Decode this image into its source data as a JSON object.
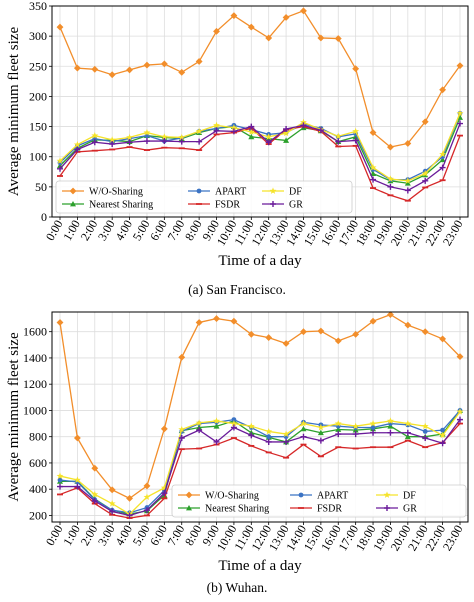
{
  "colors": {
    "W/O-Sharing": "#f28e2b",
    "Nearest Sharing": "#2ca02c",
    "APART": "#3b73c4",
    "FSDR": "#d62728",
    "DF": "#f5e32a",
    "GR": "#6a1b9a",
    "grid": "#dddddd"
  },
  "chart_data": [
    {
      "type": "line",
      "caption": "(a)  San Francisco.",
      "xlabel": "Time of a day",
      "ylabel": "Average minimum fleet size",
      "categories": [
        "0:00",
        "1:00",
        "2:00",
        "3:00",
        "4:00",
        "5:00",
        "6:00",
        "7:00",
        "8:00",
        "9:00",
        "10:00",
        "11:00",
        "12:00",
        "13:00",
        "14:00",
        "15:00",
        "16:00",
        "17:00",
        "18:00",
        "19:00",
        "20:00",
        "21:00",
        "22:00",
        "23:00"
      ],
      "ylim": [
        0,
        350
      ],
      "yticks": [
        0,
        50,
        100,
        150,
        200,
        250,
        300,
        350
      ],
      "grid": true,
      "legend": "lower-left",
      "series": [
        {
          "name": "W/O-Sharing",
          "marker": "diamond",
          "values": [
            315,
            247,
            245,
            236,
            244,
            252,
            254,
            240,
            258,
            308,
            334,
            315,
            297,
            331,
            342,
            297,
            296,
            246,
            140,
            116,
            122,
            158,
            211,
            251
          ]
        },
        {
          "name": "Nearest Sharing",
          "marker": "triangle",
          "values": [
            85,
            114,
            128,
            127,
            125,
            135,
            132,
            130,
            140,
            147,
            150,
            133,
            130,
            127,
            148,
            143,
            125,
            133,
            72,
            60,
            56,
            70,
            95,
            165
          ]
        },
        {
          "name": "APART",
          "marker": "circle",
          "values": [
            90,
            118,
            130,
            125,
            130,
            135,
            126,
            131,
            142,
            147,
            152,
            145,
            137,
            140,
            154,
            147,
            133,
            138,
            79,
            62,
            62,
            76,
            100,
            172
          ]
        },
        {
          "name": "FSDR",
          "marker": "dash",
          "values": [
            68,
            108,
            110,
            112,
            116,
            111,
            115,
            114,
            111,
            137,
            140,
            147,
            121,
            145,
            150,
            142,
            117,
            118,
            48,
            36,
            27,
            49,
            61,
            135
          ]
        },
        {
          "name": "DF",
          "marker": "star",
          "values": [
            93,
            120,
            135,
            128,
            132,
            140,
            133,
            132,
            142,
            152,
            148,
            141,
            133,
            139,
            157,
            145,
            134,
            142,
            82,
            63,
            60,
            72,
            104,
            172
          ]
        },
        {
          "name": "GR",
          "marker": "plus",
          "values": [
            80,
            112,
            124,
            121,
            124,
            126,
            126,
            125,
            125,
            143,
            142,
            150,
            124,
            146,
            152,
            144,
            125,
            127,
            62,
            50,
            44,
            60,
            82,
            155
          ]
        }
      ]
    },
    {
      "type": "line",
      "caption": "(b)  Wuhan.",
      "xlabel": "Time of a day",
      "ylabel": "Average minimum fleet size",
      "categories": [
        "0:00",
        "1:00",
        "2:00",
        "3:00",
        "4:00",
        "5:00",
        "6:00",
        "7:00",
        "8:00",
        "9:00",
        "10:00",
        "11:00",
        "12:00",
        "13:00",
        "14:00",
        "15:00",
        "16:00",
        "17:00",
        "18:00",
        "19:00",
        "20:00",
        "21:00",
        "22:00",
        "23:00"
      ],
      "ylim": [
        150,
        1750
      ],
      "yticks": [
        200,
        400,
        600,
        800,
        1000,
        1200,
        1400,
        1600
      ],
      "grid": true,
      "legend": "lower-center",
      "series": [
        {
          "name": "W/O-Sharing",
          "marker": "diamond",
          "values": [
            1670,
            790,
            560,
            395,
            330,
            425,
            860,
            1405,
            1670,
            1700,
            1680,
            1580,
            1555,
            1510,
            1600,
            1605,
            1530,
            1580,
            1680,
            1730,
            1650,
            1600,
            1545,
            1410
          ]
        },
        {
          "name": "Nearest Sharing",
          "marker": "triangle",
          "values": [
            460,
            460,
            325,
            240,
            210,
            235,
            355,
            845,
            870,
            880,
            920,
            830,
            795,
            760,
            860,
            830,
            855,
            850,
            860,
            880,
            800,
            800,
            820,
            1000
          ]
        },
        {
          "name": "APART",
          "marker": "circle",
          "values": [
            470,
            455,
            320,
            240,
            220,
            260,
            390,
            840,
            900,
            910,
            930,
            870,
            800,
            800,
            910,
            890,
            880,
            870,
            870,
            900,
            890,
            840,
            850,
            1000
          ]
        },
        {
          "name": "FSDR",
          "marker": "dash",
          "values": [
            360,
            410,
            290,
            205,
            180,
            200,
            330,
            705,
            710,
            740,
            790,
            730,
            680,
            640,
            740,
            650,
            720,
            710,
            720,
            720,
            770,
            720,
            755,
            900
          ]
        },
        {
          "name": "DF",
          "marker": "star",
          "values": [
            500,
            470,
            360,
            290,
            210,
            340,
            410,
            855,
            905,
            920,
            900,
            880,
            840,
            820,
            900,
            870,
            900,
            880,
            900,
            920,
            900,
            880,
            810,
            990
          ]
        },
        {
          "name": "GR",
          "marker": "plus",
          "values": [
            420,
            420,
            310,
            230,
            200,
            240,
            370,
            790,
            850,
            760,
            870,
            810,
            760,
            760,
            800,
            770,
            820,
            820,
            830,
            830,
            830,
            790,
            750,
            930
          ]
        }
      ]
    }
  ]
}
